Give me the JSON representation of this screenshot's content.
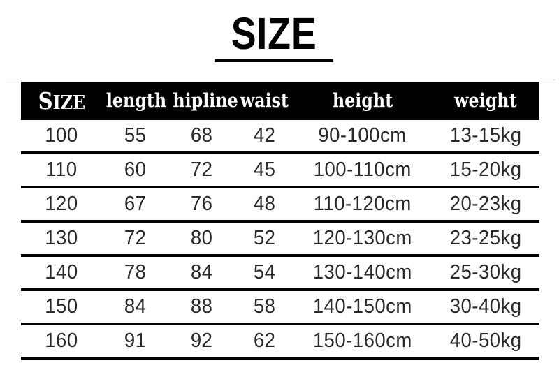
{
  "chart_data": {
    "type": "table",
    "title": "SIZE",
    "columns": [
      "SIZE",
      "length",
      "hipline",
      "waist",
      "height",
      "weight"
    ],
    "rows": [
      [
        "100",
        "55",
        "68",
        "42",
        "90-100cm",
        "13-15kg"
      ],
      [
        "110",
        "60",
        "72",
        "45",
        "100-110cm",
        "15-20kg"
      ],
      [
        "120",
        "67",
        "76",
        "48",
        "110-120cm",
        "20-23kg"
      ],
      [
        "130",
        "72",
        "80",
        "52",
        "120-130cm",
        "23-25kg"
      ],
      [
        "140",
        "78",
        "84",
        "54",
        "130-140cm",
        "25-30kg"
      ],
      [
        "150",
        "84",
        "88",
        "58",
        "140-150cm",
        "30-40kg"
      ],
      [
        "160",
        "91",
        "92",
        "62",
        "150-160cm",
        "40-50kg"
      ]
    ],
    "layout": {
      "header_style": "black-bar-white-text",
      "row_separator": "thick-black-rule",
      "grid": "horizontal-only"
    }
  },
  "colors": {
    "background": "#ffffff",
    "header_bg": "#000000",
    "header_text": "#ffffff",
    "rule": "#000000",
    "body_text": "#2a2a2a",
    "hairline": "#c9c9c9"
  }
}
